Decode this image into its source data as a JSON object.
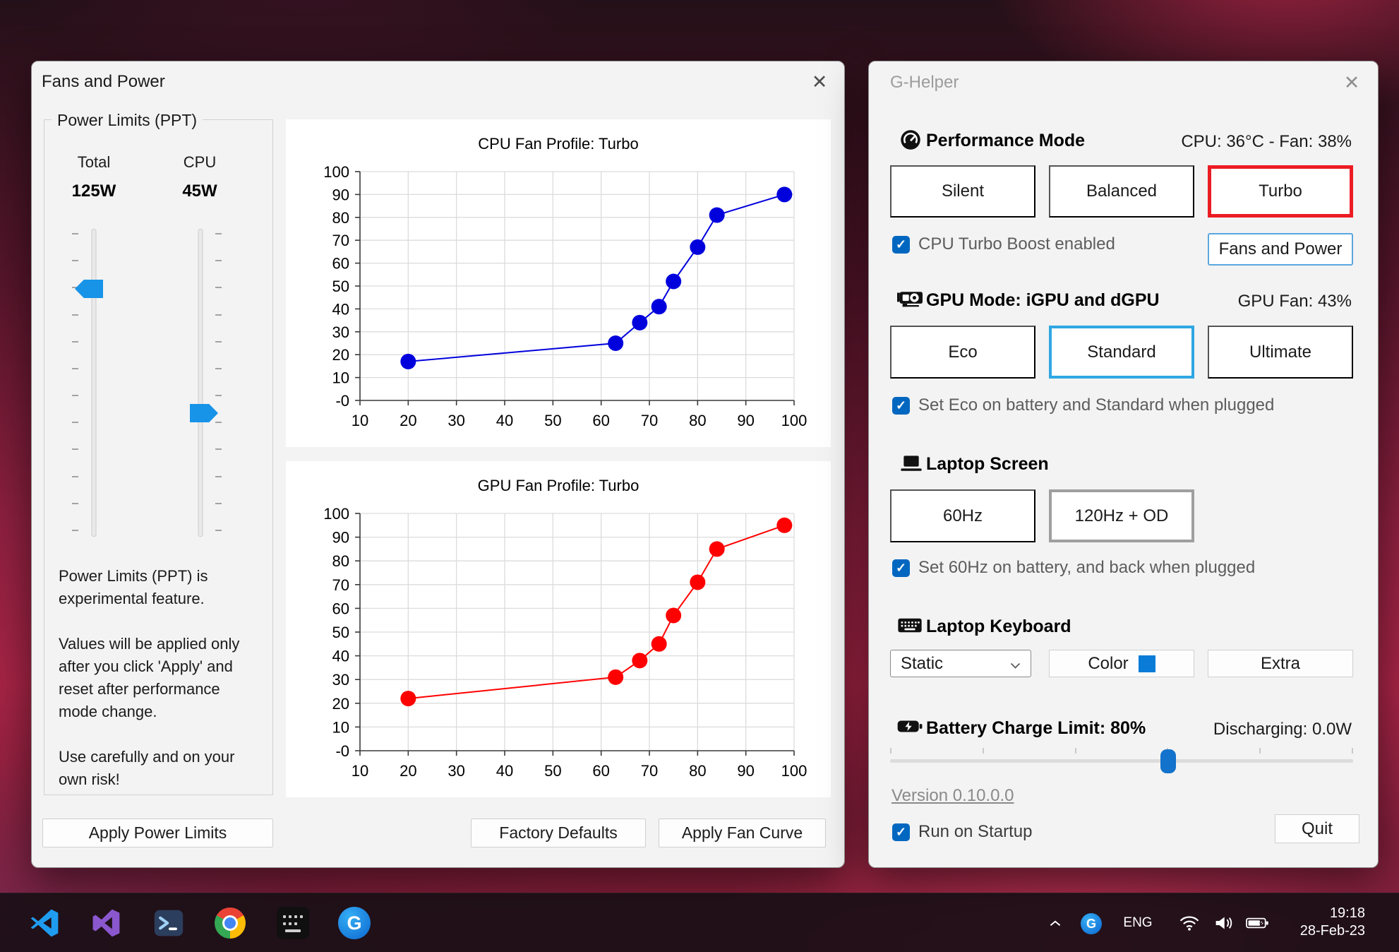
{
  "fans_window": {
    "title": "Fans and Power",
    "close_icon": "✕",
    "power_limits": {
      "group_title": "Power Limits (PPT)",
      "total_label": "Total",
      "total_value": "125W",
      "cpu_label": "CPU",
      "cpu_value": "45W",
      "note": "Power Limits (PPT) is\nexperimental feature.\n\nValues will be applied only\nafter you click 'Apply' and\nreset after performance\nmode change.\n\nUse carefully and on your\nown risk!",
      "apply_button": "Apply Power Limits"
    },
    "factory_defaults_button": "Factory Defaults",
    "apply_fan_curve_button": "Apply Fan Curve"
  },
  "chart_data": [
    {
      "type": "line",
      "title": "CPU Fan Profile: Turbo",
      "series_color": "#0000dd",
      "x": [
        20,
        63,
        68,
        72,
        75,
        80,
        84,
        98
      ],
      "y": [
        17,
        25,
        34,
        41,
        52,
        67,
        81,
        90
      ],
      "xlim": [
        10,
        100
      ],
      "ylim": [
        0,
        100
      ],
      "tick_step": 10,
      "zero_label": "-0",
      "grid": true,
      "xlabel": "",
      "ylabel": ""
    },
    {
      "type": "line",
      "title": "GPU Fan Profile: Turbo",
      "series_color": "#ff0000",
      "x": [
        20,
        63,
        68,
        72,
        75,
        80,
        84,
        98
      ],
      "y": [
        22,
        31,
        38,
        45,
        57,
        71,
        85,
        95
      ],
      "xlim": [
        10,
        100
      ],
      "ylim": [
        0,
        100
      ],
      "tick_step": 10,
      "zero_label": "-0",
      "grid": true,
      "xlabel": "",
      "ylabel": ""
    }
  ],
  "ghelper_window": {
    "title": "G-Helper",
    "close_icon": "✕",
    "performance": {
      "heading": "Performance Mode",
      "status": "CPU: 36°C  -   Fan: 38%",
      "modes": [
        "Silent",
        "Balanced",
        "Turbo"
      ],
      "selected_mode": "Turbo",
      "turbo_boost_checkbox": "CPU Turbo Boost enabled",
      "fans_power_button": "Fans and Power"
    },
    "gpu": {
      "heading": "GPU Mode: iGPU and dGPU",
      "status": "GPU Fan: 43%",
      "modes": [
        "Eco",
        "Standard",
        "Ultimate"
      ],
      "selected_mode": "Standard",
      "eco_checkbox": "Set Eco on battery and Standard when plugged"
    },
    "screen": {
      "heading": "Laptop Screen",
      "modes": [
        "60Hz",
        "120Hz + OD"
      ],
      "selected_mode": "120Hz + OD",
      "hz_checkbox": "Set 60Hz on battery, and back when plugged"
    },
    "keyboard": {
      "heading": "Laptop Keyboard",
      "backlight_mode": "Static",
      "color_button": "Color",
      "extra_button": "Extra",
      "accent_color": "#0a7cd8"
    },
    "battery": {
      "heading": "Battery Charge Limit: 80%",
      "status": "Discharging: 0.0W",
      "limit_percent": 80,
      "slider_range": [
        50,
        100
      ]
    },
    "version_link": "Version 0.10.0.0",
    "startup_checkbox": "Run on Startup",
    "quit_button": "Quit",
    "check_glyph": "✓"
  },
  "taskbar": {
    "icons": [
      "vscode",
      "visual-studio",
      "terminal",
      "chrome",
      "dark-app",
      "g-helper"
    ],
    "g_letter": "G",
    "tray": {
      "language": "ENG",
      "time": "19:18",
      "date": "28-Feb-23"
    }
  }
}
